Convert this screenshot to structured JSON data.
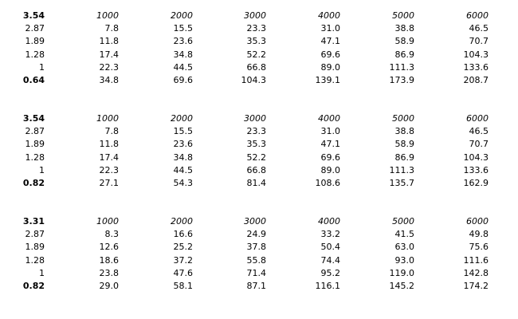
{
  "tables": [
    {
      "header": [
        "3.54",
        "1000",
        "2000",
        "3000",
        "4000",
        "5000",
        "6000"
      ],
      "rows": [
        [
          "2.87",
          "7.8",
          "15.5",
          "23.3",
          "31.0",
          "38.8",
          "46.5"
        ],
        [
          "1.89",
          "11.8",
          "23.6",
          "35.3",
          "47.1",
          "58.9",
          "70.7"
        ],
        [
          "1.28",
          "17.4",
          "34.8",
          "52.2",
          "69.6",
          "86.9",
          "104.3"
        ],
        [
          "1",
          "22.3",
          "44.5",
          "66.8",
          "89.0",
          "111.3",
          "133.6"
        ],
        [
          "0.64",
          "34.8",
          "69.6",
          "104.3",
          "139.1",
          "173.9",
          "208.7"
        ]
      ]
    },
    {
      "header": [
        "3.54",
        "1000",
        "2000",
        "3000",
        "4000",
        "5000",
        "6000"
      ],
      "rows": [
        [
          "2.87",
          "7.8",
          "15.5",
          "23.3",
          "31.0",
          "38.8",
          "46.5"
        ],
        [
          "1.89",
          "11.8",
          "23.6",
          "35.3",
          "47.1",
          "58.9",
          "70.7"
        ],
        [
          "1.28",
          "17.4",
          "34.8",
          "52.2",
          "69.6",
          "86.9",
          "104.3"
        ],
        [
          "1",
          "22.3",
          "44.5",
          "66.8",
          "89.0",
          "111.3",
          "133.6"
        ],
        [
          "0.82",
          "27.1",
          "54.3",
          "81.4",
          "108.6",
          "135.7",
          "162.9"
        ]
      ]
    },
    {
      "header": [
        "3.31",
        "1000",
        "2000",
        "3000",
        "4000",
        "5000",
        "6000"
      ],
      "rows": [
        [
          "2.87",
          "8.3",
          "16.6",
          "24.9",
          "33.2",
          "41.5",
          "49.8"
        ],
        [
          "1.89",
          "12.6",
          "25.2",
          "37.8",
          "50.4",
          "63.0",
          "75.6"
        ],
        [
          "1.28",
          "18.6",
          "37.2",
          "55.8",
          "74.4",
          "93.0",
          "111.6"
        ],
        [
          "1",
          "23.8",
          "47.6",
          "71.4",
          "95.2",
          "119.0",
          "142.8"
        ],
        [
          "0.82",
          "29.0",
          "58.1",
          "87.1",
          "116.1",
          "145.2",
          "174.2"
        ]
      ]
    }
  ]
}
